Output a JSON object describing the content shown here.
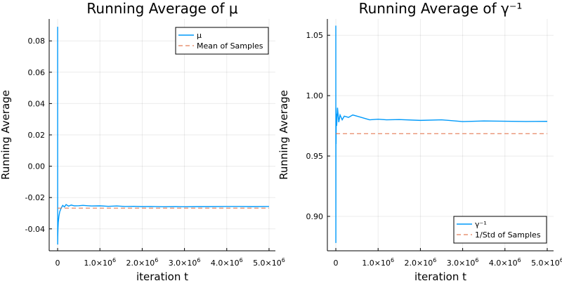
{
  "chart_data": [
    {
      "type": "line",
      "title": "Running Average of μ",
      "xlabel": "iteration t",
      "ylabel": "Running Average",
      "xlim": [
        -200000,
        5150000
      ],
      "ylim": [
        -0.054,
        0.094
      ],
      "x_ticks": [
        {
          "value": 0,
          "label": "0",
          "exp": ""
        },
        {
          "value": 1000000,
          "label": "1.0×10",
          "exp": "6"
        },
        {
          "value": 2000000,
          "label": "2.0×10",
          "exp": "6"
        },
        {
          "value": 3000000,
          "label": "3.0×10",
          "exp": "6"
        },
        {
          "value": 4000000,
          "label": "4.0×10",
          "exp": "6"
        },
        {
          "value": 5000000,
          "label": "5.0×10",
          "exp": "6"
        }
      ],
      "y_ticks": [
        {
          "value": -0.04,
          "label": "-0.04"
        },
        {
          "value": -0.02,
          "label": "-0.02"
        },
        {
          "value": 0.0,
          "label": "0.00"
        },
        {
          "value": 0.02,
          "label": "0.02"
        },
        {
          "value": 0.04,
          "label": "0.04"
        },
        {
          "value": 0.06,
          "label": "0.06"
        },
        {
          "value": 0.08,
          "label": "0.08"
        }
      ],
      "grid": true,
      "legend_position": "top-right",
      "series": [
        {
          "name": "μ",
          "style": "solid",
          "color": "#009AFA",
          "x": [
            0,
            1000,
            3000,
            8000,
            15000,
            30000,
            50000,
            80000,
            120000,
            160000,
            200000,
            260000,
            320000,
            400000,
            500000,
            600000,
            700000,
            800000,
            1000000,
            1200000,
            1400000,
            1600000,
            1800000,
            2000000,
            2200000,
            2500000,
            2800000,
            3000000,
            3300000,
            3600000,
            4000000,
            4300000,
            4600000,
            5000000
          ],
          "y": [
            0.089,
            -0.05,
            -0.045,
            -0.04,
            -0.036,
            -0.032,
            -0.029,
            -0.027,
            -0.025,
            -0.026,
            -0.0245,
            -0.0255,
            -0.0248,
            -0.0253,
            -0.0252,
            -0.025,
            -0.0252,
            -0.0254,
            -0.0253,
            -0.0256,
            -0.0254,
            -0.0257,
            -0.0256,
            -0.0258,
            -0.0257,
            -0.0259,
            -0.0258,
            -0.0259,
            -0.0258,
            -0.0258,
            -0.0257,
            -0.0257,
            -0.0258,
            -0.0257
          ]
        },
        {
          "name": "Mean of Samples",
          "style": "dashed",
          "color": "#E26F46",
          "x": [
            0,
            5000000
          ],
          "y": [
            -0.0268,
            -0.0268
          ]
        }
      ]
    },
    {
      "type": "line",
      "title": "Running Average of γ⁻¹",
      "xlabel": "iteration t",
      "ylabel": "Running Average",
      "xlim": [
        -200000,
        5150000
      ],
      "ylim": [
        0.8715,
        1.0635
      ],
      "x_ticks": [
        {
          "value": 0,
          "label": "0",
          "exp": ""
        },
        {
          "value": 1000000,
          "label": "1.0×10",
          "exp": "6"
        },
        {
          "value": 2000000,
          "label": "2.0×10",
          "exp": "6"
        },
        {
          "value": 3000000,
          "label": "3.0×10",
          "exp": "6"
        },
        {
          "value": 4000000,
          "label": "4.0×10",
          "exp": "6"
        },
        {
          "value": 5000000,
          "label": "5.0×10",
          "exp": "6"
        }
      ],
      "y_ticks": [
        {
          "value": 0.9,
          "label": "0.90"
        },
        {
          "value": 0.95,
          "label": "0.95"
        },
        {
          "value": 1.0,
          "label": "1.00"
        },
        {
          "value": 1.05,
          "label": "1.05"
        }
      ],
      "grid": true,
      "legend_position": "bottom-right",
      "series": [
        {
          "name": "γ⁻¹",
          "style": "solid",
          "color": "#009AFA",
          "x": [
            0,
            1000,
            3000,
            6000,
            10000,
            20000,
            40000,
            70000,
            100000,
            150000,
            200000,
            300000,
            400000,
            500000,
            600000,
            700000,
            800000,
            1000000,
            1200000,
            1500000,
            2000000,
            2500000,
            3000000,
            3500000,
            4000000,
            4500000,
            5000000
          ],
          "y": [
            1.058,
            0.878,
            0.99,
            0.96,
            0.985,
            0.975,
            0.99,
            0.978,
            0.984,
            0.98,
            0.983,
            0.982,
            0.984,
            0.983,
            0.982,
            0.981,
            0.98,
            0.9805,
            0.98,
            0.9802,
            0.9795,
            0.98,
            0.9785,
            0.979,
            0.9788,
            0.9786,
            0.9787
          ]
        },
        {
          "name": "1/Std of Samples",
          "style": "dashed",
          "color": "#E26F46",
          "x": [
            0,
            5000000
          ],
          "y": [
            0.9685,
            0.9685
          ]
        }
      ]
    }
  ]
}
